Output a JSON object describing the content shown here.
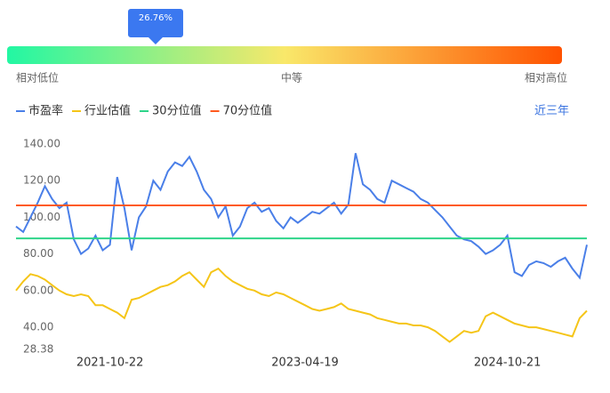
{
  "gauge": {
    "value": 26.76,
    "value_label": "26.76%",
    "labels": [
      "相对低位",
      "中等",
      "相对高位"
    ],
    "colors": [
      "#22f7a3",
      "#f9e86a",
      "#ff5200"
    ]
  },
  "range_label": "近三年",
  "chart_data": {
    "type": "line",
    "categories": [
      null,
      null,
      null,
      null,
      null,
      null,
      null,
      null,
      null,
      null,
      null,
      null,
      null,
      "2021-10-22",
      null,
      null,
      null,
      null,
      null,
      null,
      null,
      null,
      null,
      null,
      null,
      null,
      null,
      null,
      null,
      null,
      null,
      null,
      null,
      null,
      null,
      null,
      null,
      null,
      null,
      null,
      "2023-04-19",
      null,
      null,
      null,
      null,
      null,
      null,
      null,
      null,
      null,
      null,
      null,
      null,
      null,
      null,
      null,
      null,
      null,
      null,
      null,
      null,
      null,
      null,
      null,
      null,
      null,
      null,
      null,
      "2024-10-21",
      null,
      null,
      null,
      null,
      null,
      null,
      null,
      null,
      null,
      null,
      null
    ],
    "series": [
      {
        "name": "市盈率",
        "color": "#4a7fe8",
        "values": [
          95,
          92,
          100,
          108,
          117,
          110,
          105,
          108,
          88,
          80,
          83,
          90,
          82,
          85,
          122,
          105,
          82,
          100,
          106,
          120,
          115,
          125,
          130,
          128,
          133,
          125,
          115,
          110,
          100,
          106,
          90,
          95,
          105,
          108,
          103,
          105,
          98,
          94,
          100,
          97,
          100,
          103,
          102,
          105,
          108,
          102,
          107,
          135,
          118,
          115,
          110,
          108,
          120,
          118,
          116,
          114,
          110,
          108,
          104,
          100,
          95,
          90,
          88,
          87,
          84,
          80,
          82,
          85,
          90,
          70,
          68,
          74,
          76,
          75,
          73,
          76,
          78,
          72,
          67,
          85
        ]
      },
      {
        "name": "行业估值",
        "color": "#f5c518",
        "values": [
          60,
          65,
          69,
          68,
          66,
          63,
          60,
          58,
          57,
          58,
          57,
          52,
          52,
          50,
          48,
          45,
          55,
          56,
          58,
          60,
          62,
          63,
          65,
          68,
          70,
          66,
          62,
          70,
          72,
          68,
          65,
          63,
          61,
          60,
          58,
          57,
          59,
          58,
          56,
          54,
          52,
          50,
          49,
          50,
          51,
          53,
          50,
          49,
          48,
          47,
          45,
          44,
          43,
          42,
          42,
          41,
          41,
          40,
          38,
          35,
          32,
          35,
          38,
          37,
          38,
          46,
          48,
          46,
          44,
          42,
          41,
          40,
          40,
          39,
          38,
          37,
          36,
          35,
          45,
          49
        ]
      },
      {
        "name": "30分位值",
        "color": "#2ed48a",
        "value": 88.5
      },
      {
        "name": "70分位值",
        "color": "#ff5a1f",
        "value": 106.5
      }
    ],
    "ylim": [
      28.38,
      145
    ],
    "yticks": [
      {
        "value": 28.38,
        "label": "28.38"
      },
      {
        "value": 40,
        "label": "40.00"
      },
      {
        "value": 60,
        "label": "60.00"
      },
      {
        "value": 80,
        "label": "80.00"
      },
      {
        "value": 100,
        "label": "100.00"
      },
      {
        "value": 120,
        "label": "120.00"
      },
      {
        "value": 140,
        "label": "140.00"
      }
    ]
  }
}
